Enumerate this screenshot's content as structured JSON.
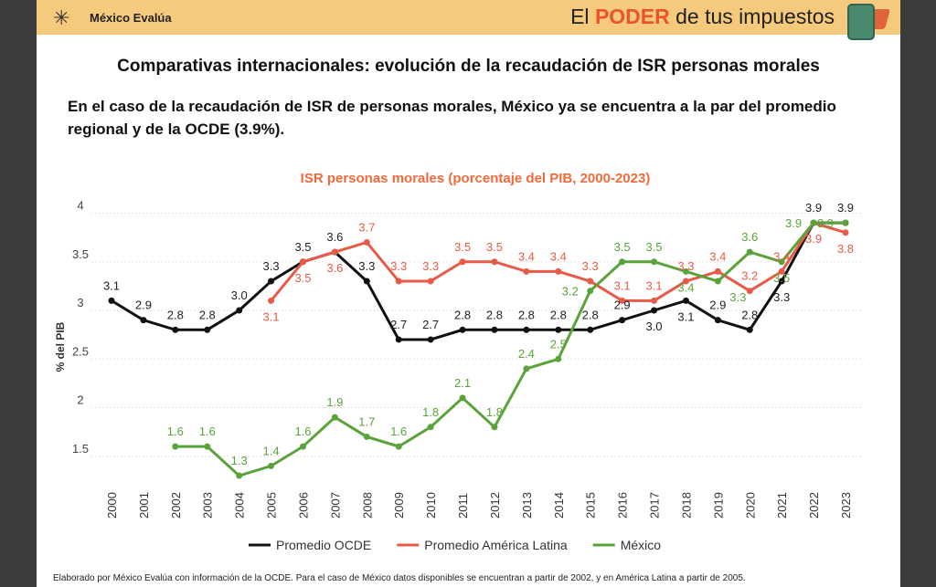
{
  "header": {
    "brand": "México Evalúa",
    "tagline_pre": "El ",
    "tagline_bold": "PODER",
    "tagline_post": " de tus impuestos"
  },
  "title": "Comparativas internacionales: evolución de la recaudación de ISR personas morales",
  "subtitle": "En el caso de la recaudación de ISR de personas morales, México ya se encuentra a la par del promedio regional y de la OCDE (3.9%).",
  "footer": "Elaborado por México Evalúa con información de la OCDE. Para el caso de México datos disponibles se encuentran a partir de 2002, y en América Latina a partir de 2005.",
  "chart_data": {
    "type": "line",
    "title": "ISR personas morales (porcentaje del PIB, 2000-2023)",
    "ylabel": "% del PIB",
    "xlabel": "",
    "ylim": [
      1.25,
      4.1
    ],
    "yticks": [
      "1.5",
      "2",
      "2.5",
      "3",
      "3.5",
      "4"
    ],
    "grid": true,
    "legend": "bottom",
    "x": [
      "2000",
      "2001",
      "2002",
      "2003",
      "2004",
      "2005",
      "2006",
      "2007",
      "2008",
      "2009",
      "2010",
      "2011",
      "2012",
      "2013",
      "2014",
      "2015",
      "2016",
      "2017",
      "2018",
      "2019",
      "2020",
      "2021",
      "2022",
      "2023"
    ],
    "series": [
      {
        "name": "Promedio OCDE",
        "color": "#111111",
        "values": [
          3.1,
          2.9,
          2.8,
          2.8,
          3.0,
          3.3,
          3.5,
          3.6,
          3.3,
          2.7,
          2.7,
          2.8,
          2.8,
          2.8,
          2.8,
          2.8,
          2.9,
          3.0,
          3.1,
          2.9,
          2.8,
          3.3,
          3.9,
          3.9
        ]
      },
      {
        "name": "Promedio América Latina",
        "color": "#e85a48",
        "values": [
          null,
          null,
          null,
          null,
          null,
          3.1,
          3.5,
          3.6,
          3.7,
          3.3,
          3.3,
          3.5,
          3.5,
          3.4,
          3.4,
          3.3,
          3.1,
          3.1,
          3.3,
          3.4,
          3.2,
          3.4,
          3.9,
          3.8
        ]
      },
      {
        "name": "México",
        "color": "#5aa33a",
        "values": [
          null,
          null,
          1.6,
          1.6,
          1.3,
          1.4,
          1.6,
          1.9,
          1.7,
          1.6,
          1.8,
          2.1,
          1.8,
          2.4,
          2.5,
          3.2,
          3.5,
          3.5,
          3.4,
          3.3,
          3.6,
          3.5,
          3.9,
          3.9
        ]
      }
    ],
    "title_color": "#f06a3c"
  }
}
